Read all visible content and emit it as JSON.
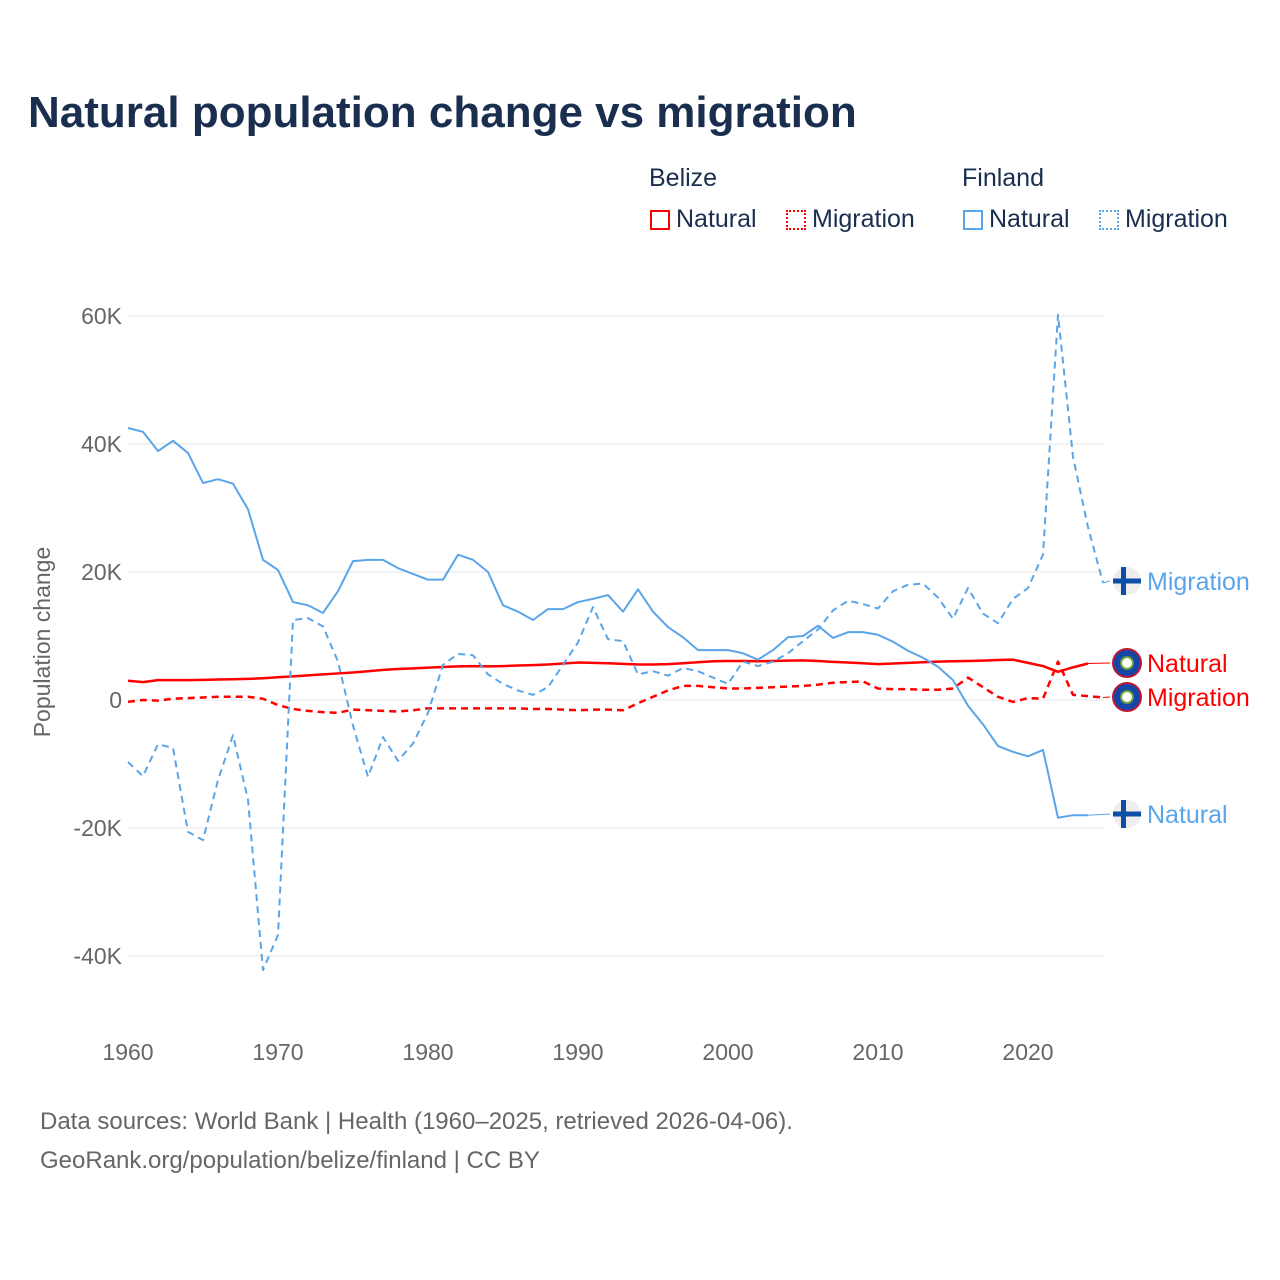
{
  "colors": {
    "belize": "#ff0000",
    "finland": "#5aa5ea",
    "grid": "#e6e6e6",
    "axis_text": "#666666"
  },
  "chart_data": {
    "type": "line",
    "title": "Natural population change vs migration",
    "ylabel": "Population change",
    "xlabel": "",
    "ylim": [
      -50000,
      62000
    ],
    "xlim": [
      1960,
      2025
    ],
    "yticks": [
      {
        "v": 60000,
        "label": "60K"
      },
      {
        "v": 40000,
        "label": "40K"
      },
      {
        "v": 20000,
        "label": "20K"
      },
      {
        "v": 0,
        "label": "0"
      },
      {
        "v": -20000,
        "label": "-20K"
      },
      {
        "v": -40000,
        "label": "-40K"
      }
    ],
    "xticks": [
      {
        "v": 1960,
        "label": "1960"
      },
      {
        "v": 1970,
        "label": "1970"
      },
      {
        "v": 1980,
        "label": "1980"
      },
      {
        "v": 1990,
        "label": "1990"
      },
      {
        "v": 2000,
        "label": "2000"
      },
      {
        "v": 2010,
        "label": "2010"
      },
      {
        "v": 2020,
        "label": "2020"
      }
    ],
    "grid": true,
    "legend": {
      "position": "top-right",
      "groups": [
        {
          "name": "Belize",
          "items": [
            "Natural",
            "Migration"
          ]
        },
        {
          "name": "Finland",
          "items": [
            "Natural",
            "Migration"
          ]
        }
      ]
    },
    "series": [
      {
        "name": "Belize Natural",
        "country": "Belize",
        "kind": "Natural",
        "dashed": false,
        "start": 1960,
        "values": [
          3000,
          2800,
          3100,
          3100,
          3100,
          3150,
          3200,
          3250,
          3300,
          3400,
          3550,
          3700,
          3850,
          4000,
          4150,
          4300,
          4500,
          4700,
          4850,
          4950,
          5050,
          5150,
          5250,
          5300,
          5250,
          5300,
          5400,
          5450,
          5550,
          5700,
          5850,
          5800,
          5750,
          5650,
          5550,
          5550,
          5600,
          5750,
          5900,
          6050,
          6100,
          6100,
          6050,
          6100,
          6150,
          6200,
          6100,
          5950,
          5850,
          5750,
          5600,
          5700,
          5800,
          5900,
          6000,
          6050,
          6100,
          6150,
          6250,
          6300,
          5800,
          5300,
          4400,
          5100,
          5700
        ],
        "end_label": "Natural"
      },
      {
        "name": "Belize Migration",
        "country": "Belize",
        "kind": "Migration",
        "dashed": true,
        "start": 1960,
        "values": [
          -300,
          0,
          -100,
          200,
          300,
          400,
          500,
          500,
          500,
          200,
          -800,
          -1400,
          -1700,
          -1900,
          -2000,
          -1500,
          -1600,
          -1700,
          -1800,
          -1600,
          -1300,
          -1300,
          -1300,
          -1300,
          -1300,
          -1300,
          -1300,
          -1400,
          -1400,
          -1500,
          -1600,
          -1500,
          -1500,
          -1600,
          -500,
          500,
          1500,
          2200,
          2200,
          2000,
          1800,
          1800,
          1900,
          2000,
          2100,
          2200,
          2400,
          2700,
          2800,
          2900,
          1800,
          1700,
          1700,
          1600,
          1600,
          1800,
          3500,
          2000,
          500,
          -300,
          300,
          200,
          6000,
          800,
          600,
          400
        ],
        "end_label": "Migration"
      },
      {
        "name": "Finland Natural",
        "country": "Finland",
        "kind": "Natural",
        "dashed": false,
        "start": 1960,
        "values": [
          42500,
          41900,
          38900,
          40500,
          38600,
          33900,
          34500,
          33800,
          29800,
          21900,
          20300,
          15300,
          14800,
          13600,
          17000,
          21700,
          21900,
          21900,
          20600,
          19700,
          18800,
          18800,
          22700,
          21900,
          20000,
          14800,
          13800,
          12500,
          14200,
          14200,
          15300,
          15800,
          16400,
          13800,
          17300,
          13800,
          11400,
          9800,
          7800,
          7800,
          7800,
          7300,
          6300,
          7800,
          9800,
          10000,
          11600,
          9700,
          10600,
          10600,
          10200,
          9100,
          7700,
          6600,
          5200,
          3100,
          -900,
          -3800,
          -7200,
          -8100,
          -8800,
          -7800,
          -18400,
          -18000,
          -18000
        ],
        "end_label": "Natural"
      },
      {
        "name": "Finland Migration",
        "country": "Finland",
        "kind": "Migration",
        "dashed": true,
        "start": 1960,
        "values": [
          -9700,
          -11900,
          -6900,
          -7500,
          -20600,
          -21900,
          -12500,
          -5500,
          -15600,
          -42200,
          -36700,
          12500,
          12800,
          11500,
          6000,
          -4000,
          -12000,
          -5800,
          -9500,
          -6800,
          -2000,
          5500,
          7200,
          7000,
          4000,
          2500,
          1500,
          800,
          2000,
          5500,
          9000,
          14500,
          9500,
          9200,
          4000,
          4500,
          3800,
          5000,
          4500,
          3500,
          2500,
          6000,
          5300,
          6000,
          7300,
          9200,
          11000,
          14000,
          15500,
          15000,
          14300,
          17000,
          18000,
          18200,
          16000,
          12700,
          17500,
          13500,
          12000,
          15800,
          17500,
          22700,
          60200,
          38000,
          27000,
          18300
        ],
        "end_label": "Migration"
      }
    ]
  },
  "footer": {
    "line1": "Data sources: World Bank | Health (1960–2025, retrieved 2026-04-06).",
    "line2": "GeoRank.org/population/belize/finland | CC BY"
  }
}
